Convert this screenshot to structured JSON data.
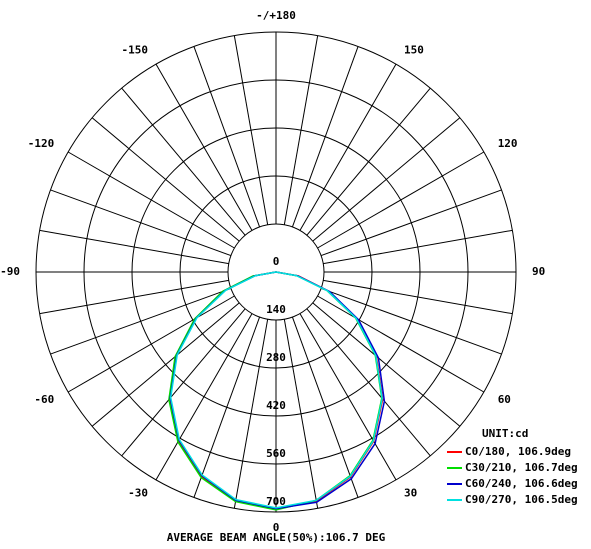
{
  "chart_data": {
    "type": "polar",
    "title": "AVERAGE BEAM ANGLE(50%):106.7 DEG",
    "unit_label": "UNIT:cd",
    "rlim": [
      0,
      700
    ],
    "rticks": [
      0,
      140,
      280,
      420,
      560,
      700
    ],
    "thetaticks": [
      {
        "value": 180,
        "label": "-/+180"
      },
      150,
      120,
      90,
      60,
      30,
      0,
      -30,
      -60,
      -90,
      -120,
      -150
    ],
    "radial_grid_step": 10,
    "x": [
      -90,
      -80,
      -70,
      -60,
      -50,
      -40,
      -30,
      -20,
      -10,
      0,
      10,
      20,
      30,
      40,
      50,
      60,
      70,
      80,
      90
    ],
    "series": [
      {
        "name": "C0/180, 106.9deg",
        "color": "#ff0000",
        "values": [
          0,
          66,
          162,
          272,
          382,
          484,
          570,
          636,
          678,
          692,
          678,
          636,
          570,
          484,
          382,
          272,
          162,
          66,
          0
        ]
      },
      {
        "name": "C30/210, 106.7deg",
        "color": "#00dd00",
        "values": [
          0,
          68,
          165,
          274,
          384,
          486,
          572,
          638,
          680,
          694,
          676,
          632,
          566,
          480,
          378,
          268,
          158,
          62,
          0
        ]
      },
      {
        "name": "C60/240, 106.6deg",
        "color": "#0000cc",
        "values": [
          0,
          62,
          158,
          268,
          378,
          480,
          566,
          632,
          676,
          690,
          682,
          642,
          578,
          492,
          390,
          278,
          166,
          64,
          0
        ]
      },
      {
        "name": "C90/270, 106.5deg",
        "color": "#00e0e0",
        "values": [
          0,
          60,
          156,
          266,
          376,
          478,
          564,
          630,
          674,
          688,
          676,
          634,
          568,
          482,
          380,
          270,
          160,
          60,
          0
        ]
      }
    ]
  }
}
